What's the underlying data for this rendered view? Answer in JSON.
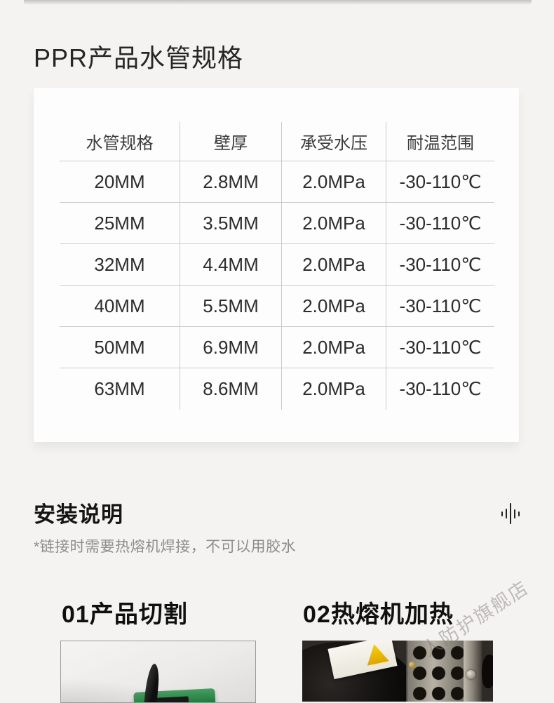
{
  "page": {
    "title": "PPR产品水管规格"
  },
  "spec_table": {
    "headers": [
      "水管规格",
      "壁厚",
      "承受水压",
      "耐温范围"
    ],
    "rows": [
      [
        "20MM",
        "2.8MM",
        "2.0MPa",
        "-30-110℃"
      ],
      [
        "25MM",
        "3.5MM",
        "2.0MPa",
        "-30-110℃"
      ],
      [
        "32MM",
        "4.4MM",
        "2.0MPa",
        "-30-110℃"
      ],
      [
        "40MM",
        "5.5MM",
        "2.0MPa",
        "-30-110℃"
      ],
      [
        "50MM",
        "6.9MM",
        "2.0MPa",
        "-30-110℃"
      ],
      [
        "63MM",
        "8.6MM",
        "2.0MPa",
        "-30-110℃"
      ]
    ]
  },
  "install": {
    "heading": "安装说明",
    "note": "*链接时需要热熔机焊接，不可以用胶水"
  },
  "steps": [
    {
      "label": "01产品切割"
    },
    {
      "label": "02热熔机加热"
    }
  ],
  "watermark": "人防护旗舰店",
  "icons": {
    "waveform": "audio-waveform-icon"
  },
  "colors": {
    "page_bg": "#f4f3f1",
    "card_bg": "#fdfdfd",
    "table_line": "#cbcbcb",
    "text_primary": "#262626",
    "text_secondary": "#8d8d8d",
    "cutter_green": "#2b7d45",
    "warning_yellow": "#f2c400"
  }
}
